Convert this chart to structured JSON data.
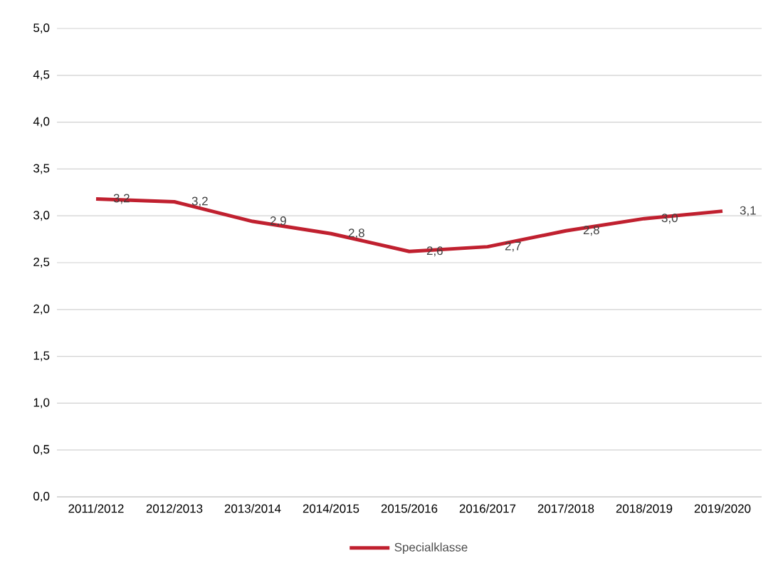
{
  "chart_data": {
    "type": "line",
    "categories": [
      "2011/2012",
      "2012/2013",
      "2013/2014",
      "2014/2015",
      "2015/2016",
      "2016/2017",
      "2017/2018",
      "2018/2019",
      "2019/2020"
    ],
    "series": [
      {
        "name": "Specialklasse",
        "color": "#c0202f",
        "values": [
          3.18,
          3.15,
          2.94,
          2.81,
          2.62,
          2.67,
          2.84,
          2.97,
          3.05
        ],
        "value_labels": [
          "3,2",
          "3,2",
          "2,9",
          "2,8",
          "2,6",
          "2,7",
          "2,8",
          "3,0",
          "3,1"
        ]
      }
    ],
    "ylim": [
      0,
      5
    ],
    "yticks": [
      {
        "value": 0,
        "label": "0,0"
      },
      {
        "value": 0.5,
        "label": "0,5"
      },
      {
        "value": 1,
        "label": "1,0"
      },
      {
        "value": 1.5,
        "label": "1,5"
      },
      {
        "value": 2,
        "label": "2,0"
      },
      {
        "value": 2.5,
        "label": "2,5"
      },
      {
        "value": 3,
        "label": "3,0"
      },
      {
        "value": 3.5,
        "label": "3,5"
      },
      {
        "value": 4,
        "label": "4,0"
      },
      {
        "value": 4.5,
        "label": "4,5"
      },
      {
        "value": 5,
        "label": "5,0"
      }
    ],
    "grid": "y",
    "legend": "bottom",
    "marker": "none",
    "line_style": "solid"
  }
}
